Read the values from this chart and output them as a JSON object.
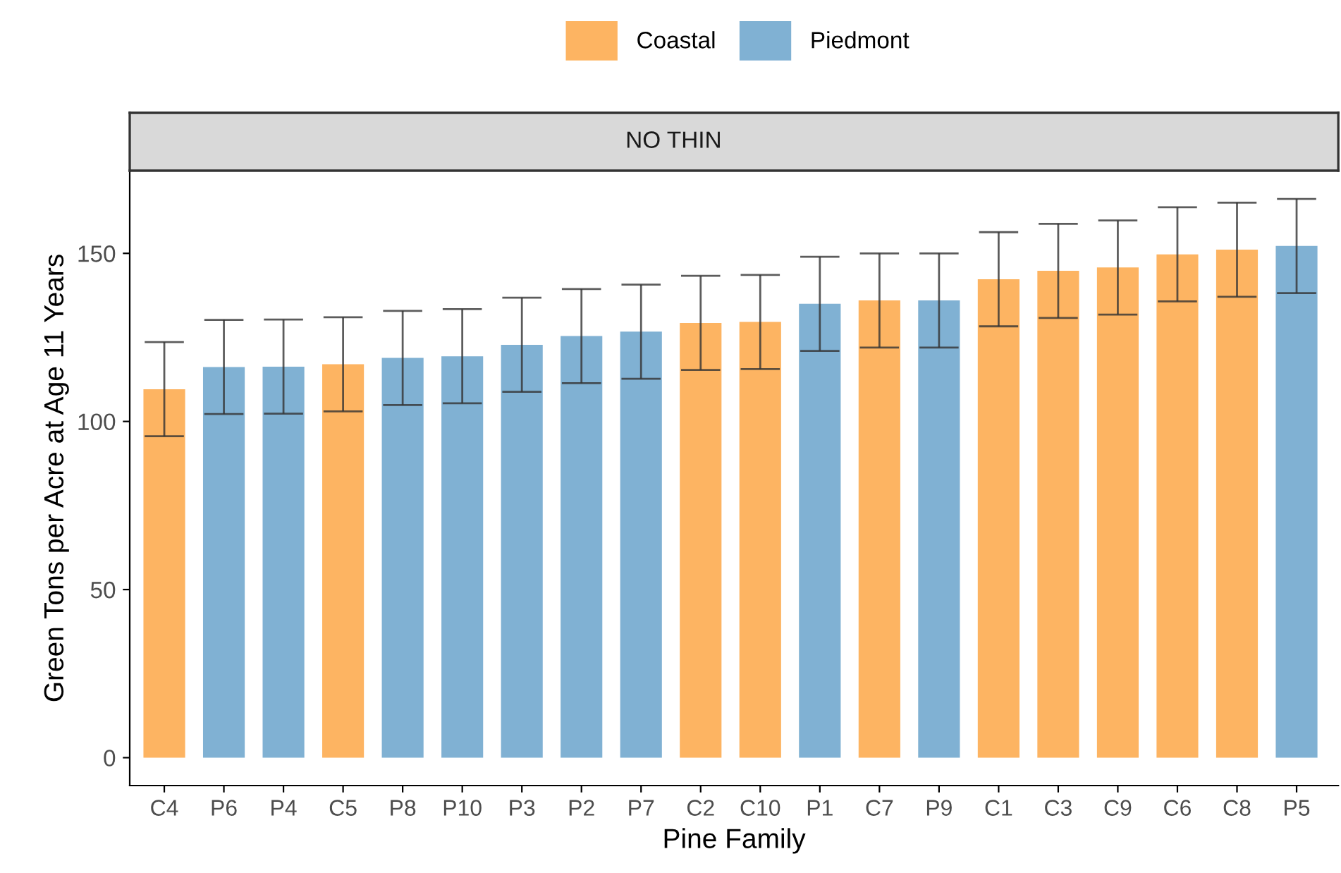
{
  "chart_data": {
    "type": "bar",
    "title": "NO THIN",
    "xlabel": "Pine Family",
    "ylabel": "Green Tons per Acre at Age 11 Years",
    "categories": [
      "C4",
      "P6",
      "P4",
      "C5",
      "P8",
      "P10",
      "P3",
      "P2",
      "P7",
      "C2",
      "C10",
      "P1",
      "C7",
      "P9",
      "C1",
      "C3",
      "C9",
      "C6",
      "C8",
      "P5"
    ],
    "series": [
      {
        "name": "Coastal",
        "color": "#fdb462",
        "values": [
          109.6,
          null,
          null,
          117.0,
          null,
          null,
          null,
          null,
          null,
          129.3,
          129.6,
          null,
          136.0,
          null,
          142.3,
          144.8,
          145.8,
          149.7,
          151.1,
          null
        ],
        "errors": [
          14,
          null,
          null,
          14,
          null,
          null,
          null,
          null,
          null,
          14,
          14,
          null,
          14,
          null,
          14,
          14,
          14,
          14,
          14,
          null
        ]
      },
      {
        "name": "Piedmont",
        "color": "#80b1d3",
        "values": [
          null,
          116.2,
          116.3,
          null,
          118.9,
          119.4,
          122.8,
          125.4,
          126.7,
          null,
          null,
          135.0,
          null,
          136.0,
          null,
          null,
          null,
          null,
          null,
          152.2
        ],
        "errors": [
          null,
          14,
          14,
          null,
          14,
          14,
          14,
          14,
          14,
          null,
          null,
          14,
          null,
          14,
          null,
          null,
          null,
          null,
          null,
          14
        ]
      }
    ],
    "ylim": [
      -8.3,
      174.6
    ],
    "yticks": [
      0,
      50,
      100,
      150
    ],
    "grid": false,
    "legend": "top"
  }
}
